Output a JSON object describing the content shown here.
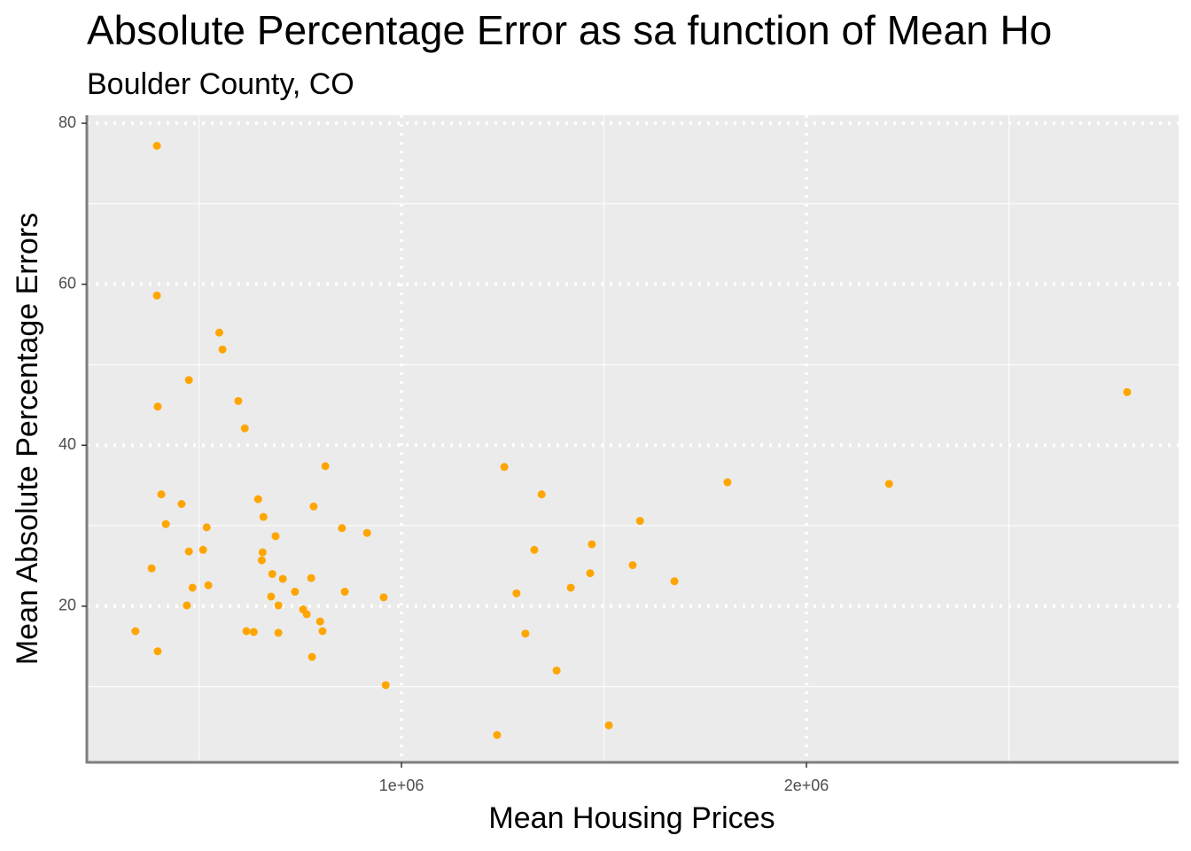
{
  "chart_data": {
    "type": "scatter",
    "title": "Absolute Percentage Error as sa function of Mean Ho",
    "subtitle": "Boulder County, CO",
    "x_label": "Mean Housing Prices",
    "y_label": "Mean Absolute Percentage Errors",
    "color": "#ffa500",
    "xlim": [
      223000,
      2919000
    ],
    "ylim": [
      0.6,
      81
    ],
    "xticks": [
      {
        "value": 1000000,
        "label": "1e+06"
      },
      {
        "value": 2000000,
        "label": "2e+06"
      }
    ],
    "yticks": [
      20,
      40,
      60,
      80
    ],
    "minor_xticks": [
      500000,
      1500000,
      2500000
    ],
    "minor_yticks": [
      10,
      30,
      50,
      70
    ],
    "grid": true,
    "x": [
      396000,
      396000,
      398000,
      343000,
      398000,
      383000,
      407000,
      418000,
      457000,
      475000,
      475000,
      470000,
      484000,
      510000,
      519000,
      523000,
      550000,
      558000,
      597000,
      613000,
      617000,
      635000,
      646000,
      659000,
      657000,
      655000,
      681000,
      689000,
      707000,
      678000,
      696000,
      696000,
      737000,
      757000,
      766000,
      777000,
      783000,
      779000,
      799000,
      805000,
      812000,
      853000,
      860000,
      915000,
      956000,
      961000,
      1236000,
      1254000,
      1284000,
      1306000,
      1328000,
      1346000,
      1383000,
      1418000,
      1466000,
      1470000,
      1512000,
      1571000,
      1589000,
      1674000,
      1805000,
      2204000,
      2792000
    ],
    "values": [
      77.2,
      58.6,
      44.8,
      16.9,
      14.4,
      24.7,
      33.9,
      30.2,
      32.7,
      48.1,
      26.8,
      20.1,
      22.3,
      27.0,
      29.8,
      22.6,
      54.0,
      51.9,
      45.5,
      42.1,
      16.9,
      16.8,
      33.3,
      31.1,
      26.7,
      25.7,
      24.0,
      28.7,
      23.4,
      21.2,
      20.1,
      16.7,
      21.8,
      19.6,
      19.0,
      23.5,
      32.4,
      13.7,
      18.1,
      16.9,
      37.4,
      29.7,
      21.8,
      29.1,
      21.1,
      10.2,
      4.0,
      37.3,
      21.6,
      16.6,
      27.0,
      33.9,
      12.0,
      22.3,
      24.1,
      27.7,
      5.2,
      25.1,
      30.6,
      23.1,
      35.4,
      35.2,
      46.6
    ]
  }
}
